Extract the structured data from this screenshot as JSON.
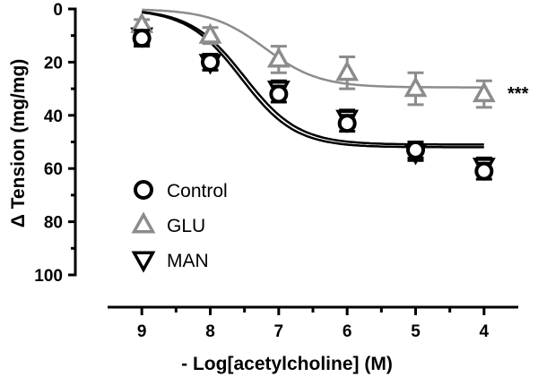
{
  "chart_data": {
    "type": "scatter",
    "title": "",
    "xlabel": "- Log[acetylcholine] (M)",
    "ylabel": "Δ Tension (mg/mg)",
    "x_reversed": true,
    "y_inverted": true,
    "xlim": [
      9.5,
      3.5
    ],
    "ylim": [
      0,
      100
    ],
    "x_ticks": [
      9,
      8,
      7,
      6,
      5,
      4
    ],
    "y_ticks": [
      0,
      20,
      40,
      60,
      80,
      100
    ],
    "grid": false,
    "legend_position": "bottom-left",
    "series": [
      {
        "name": "Control",
        "marker": "circle",
        "color": "#000000",
        "x": [
          9,
          8,
          7,
          6,
          5,
          4
        ],
        "y": [
          11,
          20,
          32,
          43,
          53,
          61
        ],
        "err": [
          3,
          3,
          3,
          3,
          3,
          3
        ],
        "fit": {
          "bottom": 0,
          "top": 51,
          "logEC50": 7.5,
          "hill": 1.1
        }
      },
      {
        "name": "GLU",
        "marker": "triangle-up",
        "color": "#8c8c8c",
        "x": [
          9,
          8,
          7,
          6,
          5,
          4
        ],
        "y": [
          6,
          10,
          19,
          24,
          30,
          32
        ],
        "err": [
          2,
          3,
          5,
          6,
          6,
          5
        ],
        "fit": {
          "bottom": 0,
          "top": 29.5,
          "logEC50": 7.2,
          "hill": 1.1
        }
      },
      {
        "name": "MAN",
        "marker": "triangle-down",
        "color": "#000000",
        "x": [
          9,
          8,
          7,
          6,
          5,
          4
        ],
        "y": [
          10,
          20,
          30,
          41,
          54,
          59
        ],
        "err": [
          3,
          3,
          3,
          3,
          3,
          3
        ],
        "fit": {
          "bottom": 0,
          "top": 52,
          "logEC50": 7.55,
          "hill": 1.1
        }
      }
    ],
    "annotations": [
      {
        "text": "***",
        "x": 3.9,
        "y": 30
      }
    ]
  }
}
